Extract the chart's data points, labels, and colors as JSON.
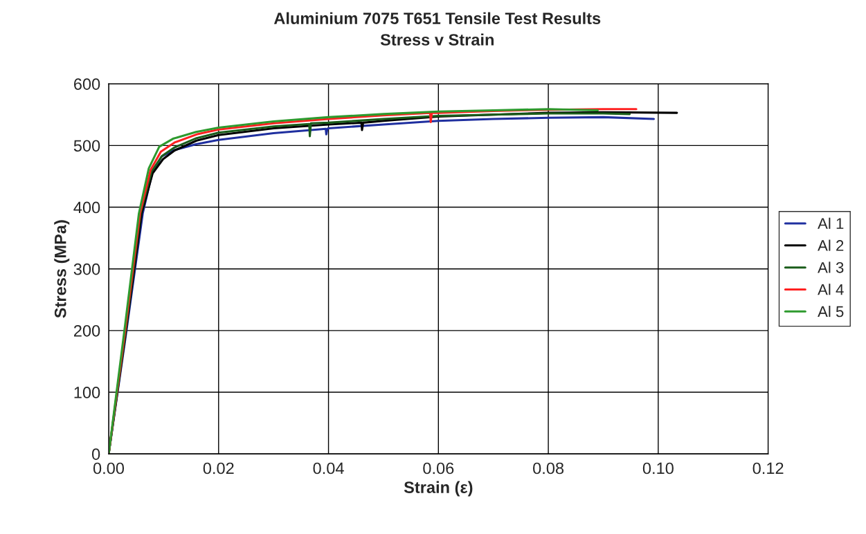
{
  "chart_data": {
    "type": "line",
    "title": "Aluminium 7075 T651 Tensile Test Results",
    "subtitle": "Stress v Strain",
    "xlabel": "Strain (ε)",
    "ylabel": "Stress (MPa)",
    "xlim": [
      0,
      0.12
    ],
    "ylim": [
      0,
      600
    ],
    "xticks": [
      {
        "value": 0,
        "label": "0.00"
      },
      {
        "value": 0.02,
        "label": "0.02"
      },
      {
        "value": 0.04,
        "label": "0.04"
      },
      {
        "value": 0.06,
        "label": "0.06"
      },
      {
        "value": 0.08,
        "label": "0.08"
      },
      {
        "value": 0.1,
        "label": "0.10"
      },
      {
        "value": 0.12,
        "label": "0.12"
      }
    ],
    "yticks": [
      0,
      100,
      200,
      300,
      400,
      500,
      600
    ],
    "grid": true,
    "legend": "right",
    "marker": "none",
    "line_style": "solid",
    "series": [
      {
        "name": "Al 1",
        "color": "#1f2f9f",
        "x": [
          0,
          0.003,
          0.0062,
          0.0079,
          0.0096,
          0.0117,
          0.0159,
          0.02,
          0.03,
          0.0395,
          0.0396,
          0.0398,
          0.04,
          0.05,
          0.06,
          0.07,
          0.08,
          0.09,
          0.0992
        ],
        "values": [
          0,
          185,
          390,
          455,
          482,
          492,
          502,
          509,
          520,
          527,
          518,
          527,
          528,
          534,
          540,
          543,
          545,
          546,
          543
        ]
      },
      {
        "name": "Al 2",
        "color": "#000000",
        "x": [
          0,
          0.003,
          0.006,
          0.008,
          0.0099,
          0.012,
          0.016,
          0.02,
          0.03,
          0.04,
          0.046,
          0.0461,
          0.0463,
          0.05,
          0.06,
          0.07,
          0.08,
          0.09,
          0.1034
        ],
        "values": [
          0,
          190,
          390,
          455,
          478,
          492,
          508,
          517,
          528,
          534,
          537,
          525,
          537,
          540,
          547,
          550,
          553,
          554,
          553
        ]
      },
      {
        "name": "Al 3",
        "color": "#1a5c1a",
        "x": [
          0,
          0.003,
          0.0058,
          0.0078,
          0.0097,
          0.012,
          0.016,
          0.02,
          0.03,
          0.0365,
          0.0366,
          0.0368,
          0.04,
          0.05,
          0.06,
          0.07,
          0.08,
          0.09,
          0.0948
        ],
        "values": [
          0,
          195,
          390,
          458,
          483,
          497,
          512,
          521,
          531,
          535,
          515,
          536,
          537,
          543,
          548,
          550,
          552,
          552,
          551
        ]
      },
      {
        "name": "Al 4",
        "color": "#ff2020",
        "x": [
          0,
          0.003,
          0.0057,
          0.0076,
          0.0095,
          0.012,
          0.016,
          0.02,
          0.03,
          0.04,
          0.05,
          0.0585,
          0.0586,
          0.0588,
          0.06,
          0.07,
          0.08,
          0.09,
          0.096
        ],
        "values": [
          0,
          200,
          390,
          460,
          490,
          505,
          518,
          526,
          536,
          543,
          549,
          553,
          538,
          553,
          553,
          556,
          558,
          559,
          559
        ]
      },
      {
        "name": "Al 5",
        "color": "#2e9a2e",
        "x": [
          0,
          0.003,
          0.0055,
          0.0073,
          0.0092,
          0.0117,
          0.0159,
          0.02,
          0.03,
          0.04,
          0.05,
          0.06,
          0.07,
          0.08,
          0.089
        ],
        "values": [
          0,
          210,
          390,
          463,
          498,
          511,
          522,
          529,
          539,
          546,
          551,
          555,
          557,
          559,
          557
        ]
      }
    ]
  }
}
